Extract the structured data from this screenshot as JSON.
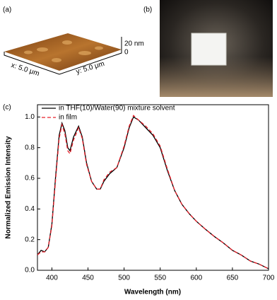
{
  "panels": {
    "a": {
      "label": "(a)",
      "z_top": "20 nm",
      "z_bottom": "0",
      "x_label": "x: 5.0 μm",
      "y_label": "y: 5.0 μm"
    },
    "b": {
      "label": "(b)"
    }
  },
  "chart_data": {
    "type": "line",
    "label": "(c)",
    "x_label": "Wavelength (nm)",
    "y_label": "Normalized Emission Intensity",
    "x": [
      380,
      385,
      390,
      395,
      400,
      405,
      410,
      414,
      418,
      422,
      425,
      430,
      437,
      442,
      448,
      455,
      462,
      467,
      472,
      480,
      490,
      500,
      507,
      513,
      520,
      530,
      540,
      550,
      560,
      570,
      580,
      590,
      600,
      612,
      625,
      637,
      650,
      662,
      675,
      687,
      700
    ],
    "series": [
      {
        "name": "in THF(10)/Water(90) mixture solvent",
        "color": "#000000",
        "dash": false,
        "values": [
          0.1,
          0.13,
          0.12,
          0.15,
          0.3,
          0.6,
          0.88,
          0.96,
          0.91,
          0.8,
          0.78,
          0.87,
          0.94,
          0.87,
          0.7,
          0.58,
          0.53,
          0.53,
          0.58,
          0.63,
          0.67,
          0.8,
          0.93,
          1.0,
          0.98,
          0.93,
          0.88,
          0.8,
          0.65,
          0.52,
          0.43,
          0.37,
          0.32,
          0.27,
          0.22,
          0.18,
          0.13,
          0.1,
          0.06,
          0.04,
          0.01
        ]
      },
      {
        "name": "in film",
        "color": "#e8202a",
        "dash": true,
        "values": [
          0.1,
          0.12,
          0.12,
          0.15,
          0.29,
          0.58,
          0.86,
          0.95,
          0.89,
          0.78,
          0.76,
          0.85,
          0.93,
          0.86,
          0.69,
          0.58,
          0.53,
          0.53,
          0.59,
          0.64,
          0.67,
          0.81,
          0.94,
          1.01,
          0.98,
          0.94,
          0.89,
          0.81,
          0.66,
          0.52,
          0.43,
          0.37,
          0.32,
          0.27,
          0.22,
          0.18,
          0.13,
          0.1,
          0.06,
          0.04,
          0.01
        ]
      }
    ],
    "xlim": [
      380,
      700
    ],
    "ylim": [
      0,
      1.08
    ],
    "xticks": [
      400,
      450,
      500,
      550,
      600,
      650,
      700
    ],
    "yticks": [
      {
        "value": 0,
        "label": "0.0"
      },
      {
        "value": 0.2,
        "label": "0.2"
      },
      {
        "value": 0.4,
        "label": "0.4"
      },
      {
        "value": 0.6,
        "label": "0.6"
      },
      {
        "value": 0.8,
        "label": "0.8"
      },
      {
        "value": 1,
        "label": "1.0"
      }
    ]
  }
}
